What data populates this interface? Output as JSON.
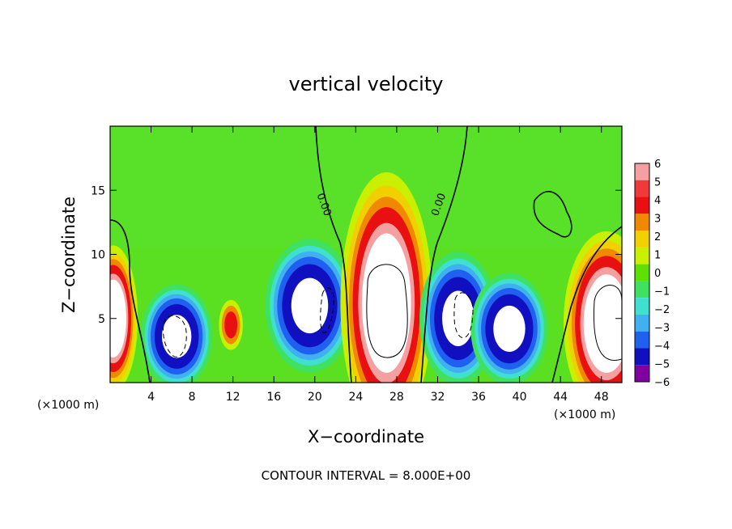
{
  "chart_data": {
    "type": "heatmap",
    "title": "vertical velocity",
    "xlabel": "X−coordinate",
    "ylabel": "Z−coordinate",
    "x_units": "(×1000 m)",
    "footer": "CONTOUR INTERVAL = 8.000E+00",
    "xlim": [
      0,
      50
    ],
    "ylim": [
      0,
      20
    ],
    "x_ticks": [
      4,
      8,
      12,
      16,
      20,
      24,
      28,
      32,
      36,
      40,
      44,
      48
    ],
    "y_ticks": [
      5,
      10,
      15
    ],
    "colorbar": {
      "levels": [
        6,
        5,
        4,
        3,
        2,
        1,
        0,
        -1,
        -2,
        -3,
        -4,
        -5,
        -6
      ],
      "labels": [
        "6",
        "5",
        "4",
        "3",
        "2",
        "1",
        "0",
        "−1",
        "−2",
        "−3",
        "−4",
        "−5",
        "−6"
      ],
      "colors": [
        "#f4a0a0",
        "#f03a3a",
        "#e81010",
        "#f08800",
        "#f0d000",
        "#c8f000",
        "#60e000",
        "#40e060",
        "#40e0d0",
        "#40b0f0",
        "#2060f0",
        "#1010c0",
        "#8000a0"
      ]
    },
    "contour_labels": [
      {
        "text": "0.00",
        "x": 20.6,
        "y": 13.8,
        "angle": 70
      },
      {
        "text": "0.00",
        "x": 32.4,
        "y": 13.8,
        "angle": -70
      }
    ],
    "features": [
      {
        "kind": "updraft",
        "x": 0.3,
        "y": 5.0,
        "rx": 1.6,
        "ry": 3.8
      },
      {
        "kind": "downdraft",
        "x": 6.5,
        "y": 3.6,
        "rx": 2.4,
        "ry": 2.8
      },
      {
        "kind": "updraft_weak",
        "x": 11.8,
        "y": 4.5,
        "rx": 0.9,
        "ry": 1.5
      },
      {
        "kind": "downdraft",
        "x": 19.5,
        "y": 6.0,
        "rx": 3.0,
        "ry": 3.6
      },
      {
        "kind": "updraft",
        "x": 27.0,
        "y": 6.2,
        "rx": 3.0,
        "ry": 6.8
      },
      {
        "kind": "downdraft",
        "x": 34.0,
        "y": 5.0,
        "rx": 2.6,
        "ry": 3.6
      },
      {
        "kind": "downdraft",
        "x": 39.0,
        "y": 4.2,
        "rx": 2.6,
        "ry": 3.0
      },
      {
        "kind": "updraft",
        "x": 48.5,
        "y": 4.6,
        "rx": 2.8,
        "ry": 4.8
      }
    ]
  }
}
